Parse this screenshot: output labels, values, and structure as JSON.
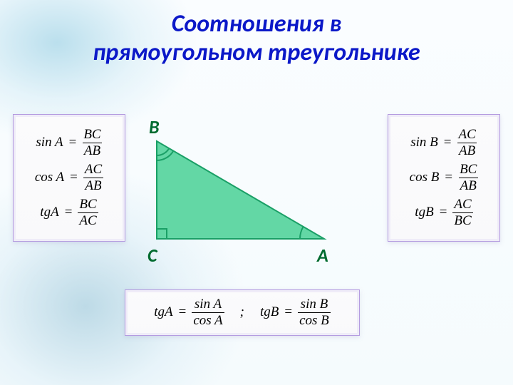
{
  "title_line1": "Соотношения в",
  "title_line2": "прямоугольном треугольнике",
  "title_color": "#0b18c8",
  "box_border_color": "#b49be0",
  "left": {
    "rows": [
      {
        "lhs": "sin A",
        "num": "BC",
        "den": "AB"
      },
      {
        "lhs": "cos A",
        "num": "AC",
        "den": "AB"
      },
      {
        "lhs": "tgA",
        "num": "BC",
        "den": "AC"
      }
    ]
  },
  "right": {
    "rows": [
      {
        "lhs": "sin B",
        "num": "AC",
        "den": "AB"
      },
      {
        "lhs": "cos B",
        "num": "BC",
        "den": "AB"
      },
      {
        "lhs": "tgB",
        "num": "AC",
        "den": "BC"
      }
    ]
  },
  "bottom": {
    "a": {
      "lhs": "tgA",
      "num": "sin A",
      "den": "cos A"
    },
    "b": {
      "lhs": "tgB",
      "num": "sin B",
      "den": "cos B"
    },
    "separator": ";"
  },
  "triangle": {
    "fill": "#63d7a5",
    "stroke": "#1a9f66",
    "vertex_color": "#006b2f",
    "labels": {
      "B": "B",
      "C": "C",
      "A": "A"
    },
    "points": {
      "C": [
        15,
        165
      ],
      "B": [
        15,
        28
      ],
      "A": [
        250,
        165
      ]
    }
  }
}
